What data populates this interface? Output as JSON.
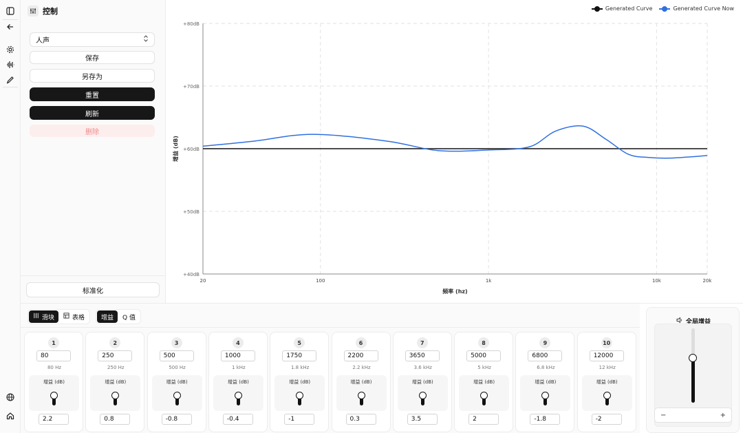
{
  "rail": {
    "icons": [
      "sidebar-toggle-icon",
      "back-arrow-icon",
      "settings-icon",
      "audio-wave-icon",
      "pen-icon",
      "globe-icon",
      "home-icon"
    ]
  },
  "panel": {
    "title": "控制",
    "preset": "人声",
    "save": "保存",
    "save_as": "另存为",
    "reset": "重置",
    "refresh": "刷新",
    "delete": "删除",
    "normalize": "标准化"
  },
  "legend": {
    "generated": "Generated Curve",
    "generated_now": "Generated Curve Now"
  },
  "colors": {
    "flat": "#111111",
    "now": "#2f6fe0"
  },
  "chart_data": {
    "type": "line",
    "x_scale": "log",
    "xlim": [
      20,
      20000
    ],
    "ylim": [
      40,
      80
    ],
    "x_ticks": [
      20,
      100,
      1000,
      10000,
      20000
    ],
    "x_tick_labels": [
      "20",
      "100",
      "1k",
      "10k",
      "20k"
    ],
    "y_ticks": [
      40,
      50,
      60,
      70,
      80
    ],
    "y_tick_labels": [
      "+40dB",
      "+50dB",
      "+60dB",
      "+70dB",
      "+80dB"
    ],
    "xlabel": "频率 (hz)",
    "ylabel": "增益 (dB)",
    "grid": true,
    "legend_position": "top-right",
    "series": [
      {
        "name": "Generated Curve",
        "x": [
          20,
          20000
        ],
        "y": [
          60,
          60
        ]
      },
      {
        "name": "Generated Curve Now",
        "x": [
          20,
          40,
          90,
          250,
          500,
          1000,
          1750,
          2500,
          3650,
          5000,
          6800,
          9000,
          12000,
          20000
        ],
        "y": [
          60.4,
          61.2,
          62.3,
          61.2,
          59.7,
          59.8,
          60.3,
          62.8,
          63.6,
          61.5,
          59.1,
          58.6,
          58.5,
          58.9
        ]
      }
    ]
  },
  "bottom": {
    "view_slider": "滑块",
    "view_table": "表格",
    "mode_gain": "增益",
    "mode_q": "Q 值",
    "gain_label": "增益 (dB)",
    "bands": [
      {
        "n": "1",
        "freq": "80",
        "label": "80 Hz",
        "gain": "2.2"
      },
      {
        "n": "2",
        "freq": "250",
        "label": "250 Hz",
        "gain": "0.8"
      },
      {
        "n": "3",
        "freq": "500",
        "label": "500 Hz",
        "gain": "-0.8"
      },
      {
        "n": "4",
        "freq": "1000",
        "label": "1 kHz",
        "gain": "-0.4"
      },
      {
        "n": "5",
        "freq": "1750",
        "label": "1.8 kHz",
        "gain": "-1"
      },
      {
        "n": "6",
        "freq": "2200",
        "label": "2.2 kHz",
        "gain": "0.3"
      },
      {
        "n": "7",
        "freq": "3650",
        "label": "3.6 kHz",
        "gain": "3.5"
      },
      {
        "n": "8",
        "freq": "5000",
        "label": "5 kHz",
        "gain": "2"
      },
      {
        "n": "9",
        "freq": "6800",
        "label": "6.8 kHz",
        "gain": "-1.8"
      },
      {
        "n": "10",
        "freq": "12000",
        "label": "12 kHz",
        "gain": "-2"
      }
    ]
  },
  "global": {
    "title": "全局增益",
    "level": 0.6
  }
}
